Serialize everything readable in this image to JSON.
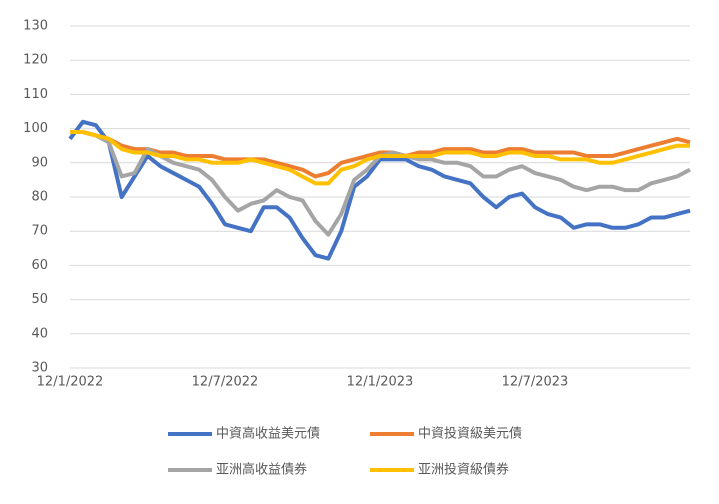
{
  "chart_data": {
    "type": "line",
    "categories": [
      "12/1/2022",
      null,
      null,
      null,
      null,
      null,
      null,
      null,
      null,
      null,
      null,
      null,
      "12/7/2022",
      null,
      null,
      null,
      null,
      null,
      null,
      null,
      null,
      null,
      null,
      null,
      "12/1/2023",
      null,
      null,
      null,
      null,
      null,
      null,
      null,
      null,
      null,
      null,
      null,
      "12/7/2023",
      null,
      null,
      null,
      null,
      null,
      null,
      null,
      null,
      null,
      null,
      null,
      null
    ],
    "ylim": [
      30,
      130
    ],
    "yticks": [
      30,
      40,
      50,
      60,
      70,
      80,
      90,
      100,
      110,
      120,
      130
    ],
    "grid": true,
    "series": [
      {
        "name": "中資高收益美元債",
        "color": "#4472c4",
        "values": [
          97,
          102,
          101,
          96,
          80,
          86,
          92,
          89,
          87,
          85,
          83,
          78,
          72,
          71,
          70,
          77,
          77,
          74,
          68,
          63,
          62,
          70,
          83,
          86,
          91,
          91,
          91,
          89,
          88,
          86,
          85,
          84,
          80,
          77,
          80,
          81,
          77,
          75,
          74,
          71,
          72,
          72,
          71,
          71,
          72,
          74,
          74,
          75,
          76
        ]
      },
      {
        "name": "中資投資級美元債",
        "color": "#ed7d31",
        "values": [
          99,
          99,
          98,
          97,
          95,
          94,
          94,
          93,
          93,
          92,
          92,
          92,
          91,
          91,
          91,
          91,
          90,
          89,
          88,
          86,
          87,
          90,
          91,
          92,
          93,
          93,
          92,
          93,
          93,
          94,
          94,
          94,
          93,
          93,
          94,
          94,
          93,
          93,
          93,
          93,
          92,
          92,
          92,
          93,
          94,
          95,
          96,
          97,
          96
        ]
      },
      {
        "name": "亚洲高收益債券",
        "color": "#a5a5a5",
        "values": [
          99,
          99,
          98,
          96,
          86,
          87,
          94,
          92,
          90,
          89,
          88,
          85,
          80,
          76,
          78,
          79,
          82,
          80,
          79,
          73,
          69,
          75,
          85,
          88,
          92,
          93,
          92,
          91,
          91,
          90,
          90,
          89,
          86,
          86,
          88,
          89,
          87,
          86,
          85,
          83,
          82,
          83,
          83,
          82,
          82,
          84,
          85,
          86,
          88
        ]
      },
      {
        "name": "亚洲投資級債券",
        "color": "#ffc000",
        "values": [
          99,
          99,
          98,
          97,
          94,
          93,
          93,
          92,
          92,
          91,
          91,
          90,
          90,
          90,
          91,
          90,
          89,
          88,
          86,
          84,
          84,
          88,
          89,
          91,
          92,
          92,
          92,
          92,
          92,
          93,
          93,
          93,
          92,
          92,
          93,
          93,
          92,
          92,
          91,
          91,
          91,
          90,
          90,
          91,
          92,
          93,
          94,
          95,
          95
        ]
      }
    ]
  }
}
